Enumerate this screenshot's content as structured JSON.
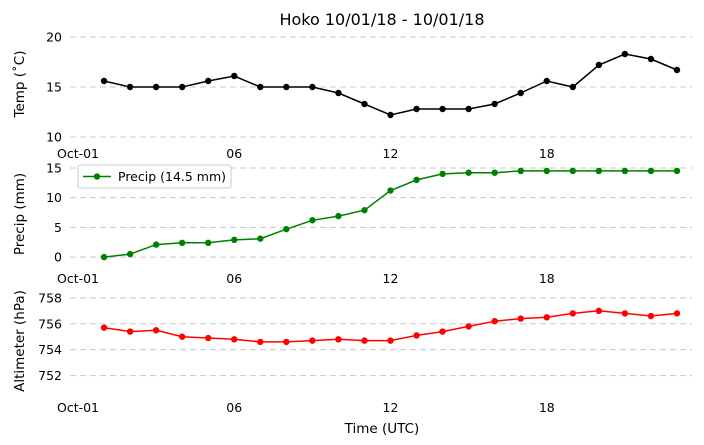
{
  "chart_data": [
    {
      "type": "line",
      "title": "Hoko 10/01/18 - 10/01/18",
      "ylabel": "Temp ($^{\\circ}$C)",
      "ylabel_display": "Temp (˚C)",
      "xlabel": "",
      "ylim": [
        9.5,
        20.5
      ],
      "yticks": [
        10,
        15,
        20
      ],
      "xticks": [
        {
          "x": 0,
          "label": "Oct-01"
        },
        {
          "x": 6,
          "label": "06"
        },
        {
          "x": 12,
          "label": "12"
        },
        {
          "x": 18,
          "label": "18"
        }
      ],
      "grid": true,
      "series": [
        {
          "color": "#000000",
          "x": [
            1,
            2,
            3,
            4,
            5,
            6,
            7,
            8,
            9,
            10,
            11,
            12,
            13,
            14,
            15,
            16,
            17,
            18,
            19,
            20,
            21,
            22,
            23
          ],
          "values": [
            15.6,
            15.0,
            15.0,
            15.0,
            15.6,
            16.1,
            15.0,
            15.0,
            15.0,
            14.4,
            13.3,
            12.2,
            12.8,
            12.8,
            12.8,
            13.3,
            14.4,
            15.6,
            15.0,
            17.2,
            18.3,
            17.8,
            16.7
          ]
        }
      ]
    },
    {
      "type": "line",
      "title": "",
      "ylabel": "Precip (mm)",
      "xlabel": "",
      "ylim": [
        -1.5,
        15.5
      ],
      "yticks": [
        0,
        5,
        10,
        15
      ],
      "xticks": [
        {
          "x": 0,
          "label": "Oct-01"
        },
        {
          "x": 6,
          "label": "06"
        },
        {
          "x": 12,
          "label": "12"
        },
        {
          "x": 18,
          "label": "18"
        }
      ],
      "grid": true,
      "legend": "top-left",
      "series": [
        {
          "name": "Precip (14.5 mm)",
          "color": "#008000",
          "x": [
            1,
            2,
            3,
            4,
            5,
            6,
            7,
            8,
            9,
            10,
            11,
            12,
            13,
            14,
            15,
            16,
            17,
            18,
            19,
            20,
            21,
            22,
            23
          ],
          "values": [
            0.0,
            0.5,
            2.1,
            2.4,
            2.4,
            2.9,
            3.1,
            4.7,
            6.2,
            6.9,
            7.9,
            11.2,
            13.0,
            14.0,
            14.2,
            14.2,
            14.5,
            14.5,
            14.5,
            14.5,
            14.5,
            14.5,
            14.5
          ]
        }
      ]
    },
    {
      "type": "line",
      "title": "",
      "ylabel": "Altimeter (hPa)",
      "xlabel": "Time (UTC)",
      "ylim": [
        750.5,
        758.3
      ],
      "yticks": [
        752,
        754,
        756,
        758
      ],
      "xticks": [
        {
          "x": 0,
          "label": "Oct-01"
        },
        {
          "x": 6,
          "label": "06"
        },
        {
          "x": 12,
          "label": "12"
        },
        {
          "x": 18,
          "label": "18"
        }
      ],
      "grid": true,
      "series": [
        {
          "color": "#ff0000",
          "x": [
            1,
            2,
            3,
            4,
            5,
            6,
            7,
            8,
            9,
            10,
            11,
            12,
            13,
            14,
            15,
            16,
            17,
            18,
            19,
            20,
            21,
            22,
            23
          ],
          "values": [
            755.7,
            755.4,
            755.5,
            755.0,
            754.9,
            754.8,
            754.6,
            754.6,
            754.7,
            754.8,
            754.7,
            754.7,
            755.1,
            755.4,
            755.8,
            756.2,
            756.4,
            756.5,
            756.8,
            757.0,
            756.8,
            756.6,
            756.8
          ]
        }
      ]
    }
  ]
}
